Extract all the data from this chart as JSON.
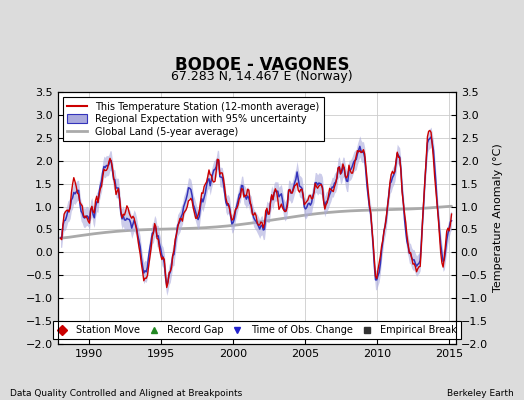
{
  "title": "BODOE - VAGONES",
  "subtitle": "67.283 N, 14.467 E (Norway)",
  "ylabel": "Temperature Anomaly (°C)",
  "xlabel_note": "Data Quality Controlled and Aligned at Breakpoints",
  "credit": "Berkeley Earth",
  "xlim": [
    1987.8,
    2015.5
  ],
  "ylim": [
    -2.0,
    3.5
  ],
  "yticks": [
    -2,
    -1.5,
    -1,
    -0.5,
    0,
    0.5,
    1,
    1.5,
    2,
    2.5,
    3,
    3.5
  ],
  "xticks": [
    1990,
    1995,
    2000,
    2005,
    2010,
    2015
  ],
  "background_color": "#dcdcdc",
  "plot_bg_color": "#ffffff",
  "regional_color": "#3333bb",
  "regional_fill_color": "#aaaadd",
  "station_color": "#cc0000",
  "global_color": "#aaaaaa",
  "title_fontsize": 12,
  "subtitle_fontsize": 9,
  "tick_fontsize": 8,
  "label_fontsize": 8
}
